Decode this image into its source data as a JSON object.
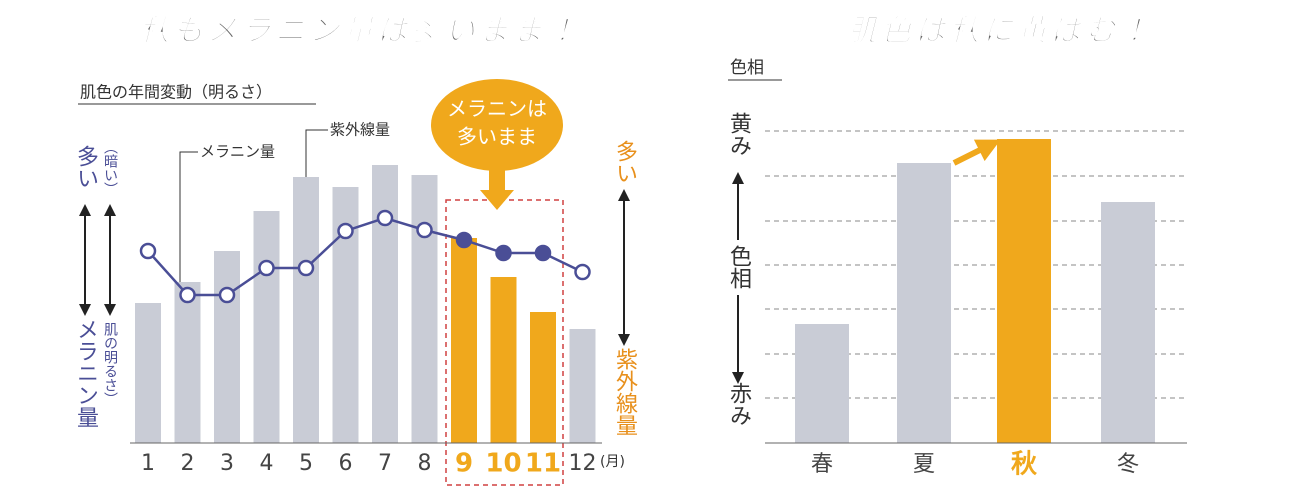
{
  "chart_data": [
    {
      "type": "bar",
      "title": "秋もメラニン量は多いまま！",
      "subtitle": "肌色の年間変動（明るさ）",
      "categories": [
        "1",
        "2",
        "3",
        "4",
        "5",
        "6",
        "7",
        "8",
        "9",
        "10",
        "11",
        "12"
      ],
      "x_unit": "(月)",
      "category_colors": [
        "#444444",
        "#444444",
        "#444444",
        "#444444",
        "#444444",
        "#444444",
        "#444444",
        "#444444",
        "#f0a81c",
        "#f0a81c",
        "#f0a81c",
        "#444444"
      ],
      "series": [
        {
          "name": "紫外線量",
          "type": "bar",
          "colors": [
            "#c9ccd6",
            "#c9ccd6",
            "#c9ccd6",
            "#c9ccd6",
            "#c9ccd6",
            "#c9ccd6",
            "#c9ccd6",
            "#c9ccd6",
            "#f0a81c",
            "#f0a81c",
            "#f0a81c",
            "#c9ccd6"
          ],
          "values": [
            140,
            161,
            192,
            232,
            266,
            256,
            278,
            268,
            205,
            166,
            131,
            114
          ]
        },
        {
          "name": "メラニン量",
          "type": "line",
          "color": "#4a4e96",
          "filled": [
            false,
            false,
            false,
            false,
            false,
            false,
            false,
            false,
            true,
            true,
            true,
            false
          ],
          "values": [
            192,
            148,
            148,
            175,
            175,
            212,
            225,
            213,
            203,
            190,
            190,
            171
          ]
        }
      ],
      "callout": [
        "メラニンは",
        "多いまま"
      ],
      "left_axis": {
        "top": "多い",
        "bottom": "メラニン量",
        "inner_top": "（暗い）",
        "inner_bottom": "肌の明るさ）"
      },
      "right_axis": {
        "top": "多い",
        "bottom": "紫外線量"
      }
    },
    {
      "type": "bar",
      "title": "肌色は秋に黄ばむ！",
      "y_label": "色相",
      "categories": [
        "春",
        "夏",
        "秋",
        "冬"
      ],
      "category_colors": [
        "#444444",
        "#444444",
        "#f0a81c",
        "#444444"
      ],
      "colors": [
        "#c9ccd6",
        "#c9ccd6",
        "#f0a81c",
        "#c9ccd6"
      ],
      "values": [
        119,
        280,
        304,
        241
      ],
      "grid_lines": [
        45,
        89,
        134,
        178,
        222,
        267,
        312
      ],
      "axis_labels": {
        "top": "黄み",
        "middle": "色相",
        "bottom": "赤み"
      }
    }
  ]
}
